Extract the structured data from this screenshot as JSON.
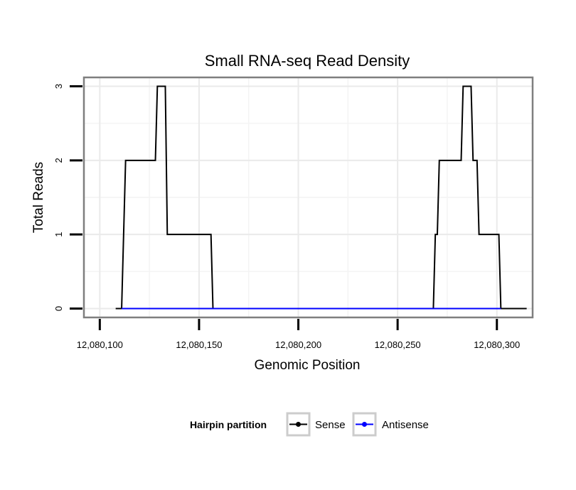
{
  "chart_data": {
    "type": "line",
    "title": "Small RNA-seq Read Density",
    "xlabel": "Genomic Position",
    "ylabel": "Total Reads",
    "xlim": [
      12080092,
      12080318
    ],
    "ylim": [
      -0.12,
      3.12
    ],
    "x_ticks": [
      12080100,
      12080150,
      12080200,
      12080250,
      12080300
    ],
    "x_tick_labels": [
      "12,080,100",
      "12,080,150",
      "12,080,200",
      "12,080,250",
      "12,080,300"
    ],
    "y_ticks": [
      0,
      1,
      2,
      3
    ],
    "y_tick_labels": [
      "0",
      "1",
      "2",
      "3"
    ],
    "grid": true,
    "legend": {
      "title": "Hairpin partition",
      "position": "bottom"
    },
    "series": [
      {
        "name": "Sense",
        "color": "#000000",
        "points": [
          [
            12080108,
            0
          ],
          [
            12080111,
            0
          ],
          [
            12080113,
            2
          ],
          [
            12080128,
            2
          ],
          [
            12080129,
            3
          ],
          [
            12080133,
            3
          ],
          [
            12080134,
            1
          ],
          [
            12080156,
            1
          ],
          [
            12080157,
            0
          ],
          [
            12080268,
            0
          ],
          [
            12080269,
            1
          ],
          [
            12080270,
            1
          ],
          [
            12080271,
            2
          ],
          [
            12080282,
            2
          ],
          [
            12080283,
            3
          ],
          [
            12080287,
            3
          ],
          [
            12080288,
            2
          ],
          [
            12080290,
            2
          ],
          [
            12080291,
            1
          ],
          [
            12080301,
            1
          ],
          [
            12080302,
            0
          ],
          [
            12080315,
            0
          ]
        ]
      },
      {
        "name": "Antisense",
        "color": "#0000ff",
        "points": [
          [
            12080111,
            0
          ],
          [
            12080157,
            0
          ],
          [
            12080268,
            0
          ],
          [
            12080302,
            0
          ]
        ]
      }
    ]
  }
}
